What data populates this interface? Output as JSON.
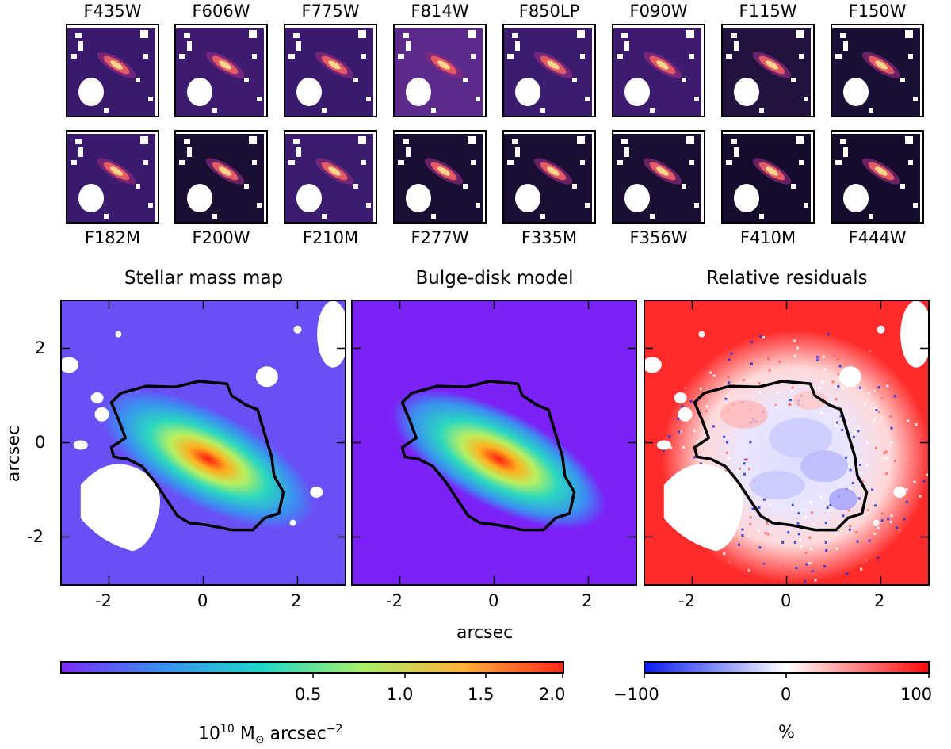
{
  "top_filters": [
    "F435W",
    "F606W",
    "F775W",
    "F814W",
    "F850LP",
    "F090W",
    "F115W",
    "F150W"
  ],
  "bottom_filters": [
    "F182M",
    "F200W",
    "F210M",
    "F277W",
    "F335M",
    "F356W",
    "F410M",
    "F444W"
  ],
  "thumb_colors": {
    "bg_dark": "#1c0f3a",
    "bg_mid": "#3b1b6b",
    "galaxy_core": "#fbd58e",
    "galaxy_mid": "#e35a62",
    "galaxy_outer": "#8c2a7a",
    "mask": "#ffffff"
  },
  "panels": {
    "mass_map": {
      "title": "Stellar mass map"
    },
    "model": {
      "title": "Bulge-disk model"
    },
    "residuals": {
      "title": "Relative residuals"
    }
  },
  "axes": {
    "xlabel": "arcsec",
    "ylabel": "arcsec",
    "x_ticks": [
      "-2",
      "0",
      "2"
    ],
    "y_ticks": [
      "2",
      "0",
      "-2"
    ],
    "x_range": [
      -3,
      3
    ],
    "y_range": [
      -3,
      3
    ]
  },
  "colorbar_mass": {
    "ticks": [
      "0.5",
      "1.0",
      "1.5",
      "2.0"
    ],
    "label_base": "10",
    "label_exp": "10",
    "label_unit": " M",
    "label_sun": "⊙",
    "label_rest": " arcsec",
    "label_rest_exp": "−2",
    "colors": [
      "#7b2cf5",
      "#3a8ff0",
      "#20d6c8",
      "#a8f06a",
      "#ffb13b",
      "#ff2a1a"
    ]
  },
  "colorbar_resid": {
    "ticks": [
      "−100",
      "0",
      "100"
    ],
    "label": "%",
    "colors": [
      "#0a1cf0",
      "#ffffff",
      "#ff0a0a"
    ]
  },
  "colors": {
    "mass_bg": "#6a4ff5",
    "model_bg": "#7a22f8",
    "resid_bg": "#ff2a2a",
    "contour": "#000000"
  }
}
